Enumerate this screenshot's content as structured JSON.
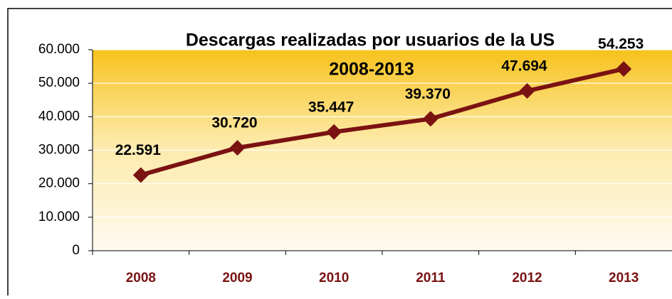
{
  "chart_data": {
    "type": "line",
    "title": "Descargas realizadas por usuarios de la US",
    "subtitle": "2008-2013",
    "categories": [
      "2008",
      "2009",
      "2010",
      "2011",
      "2012",
      "2013"
    ],
    "series": [
      {
        "name": "Descargas",
        "color": "#7a1212",
        "values": [
          22591,
          30720,
          35447,
          39370,
          47694,
          54253
        ],
        "value_labels": [
          "22.591",
          "30.720",
          "35.447",
          "39.370",
          "47.694",
          "54.253"
        ]
      }
    ],
    "ylim": [
      0,
      60000
    ],
    "yticks": [
      0,
      {
        "value": 10000,
        "label": "10.000"
      },
      {
        "value": 20000,
        "label": "20.000"
      },
      {
        "value": 30000,
        "label": "30.000"
      },
      {
        "value": 40000,
        "label": "40.000"
      },
      {
        "value": 50000,
        "label": "50.000"
      },
      {
        "value": 60000,
        "label": "60.000"
      }
    ],
    "grid": true
  }
}
